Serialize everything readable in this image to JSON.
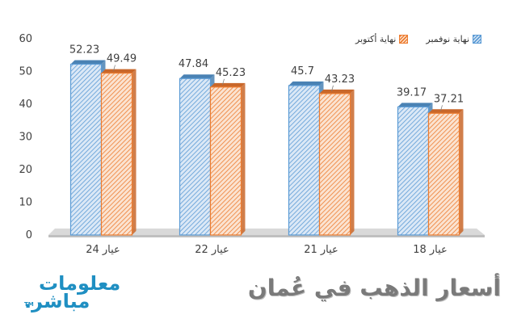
{
  "chart_data": {
    "type": "bar",
    "categories": [
      "عيار 24",
      "عيار 22",
      "عيار 21",
      "عيار 18"
    ],
    "series": [
      {
        "name": "نهاية نوفمبر",
        "values": [
          52.23,
          47.84,
          45.7,
          39.17
        ],
        "color": "#5b9bd5"
      },
      {
        "name": "نهاية أكتوبر",
        "values": [
          49.49,
          45.23,
          43.23,
          37.21
        ],
        "color": "#ed7d31"
      }
    ],
    "y_ticks": [
      "0",
      "10",
      "20",
      "30",
      "40",
      "50",
      "60"
    ],
    "ylim": [
      0,
      60
    ],
    "grid": false,
    "legend_position": "top-right",
    "title": "أسعار الذهب في عُمان"
  },
  "logo": {
    "line1": "معلومات",
    "line2": "مباشر.",
    "tm": "TM"
  }
}
